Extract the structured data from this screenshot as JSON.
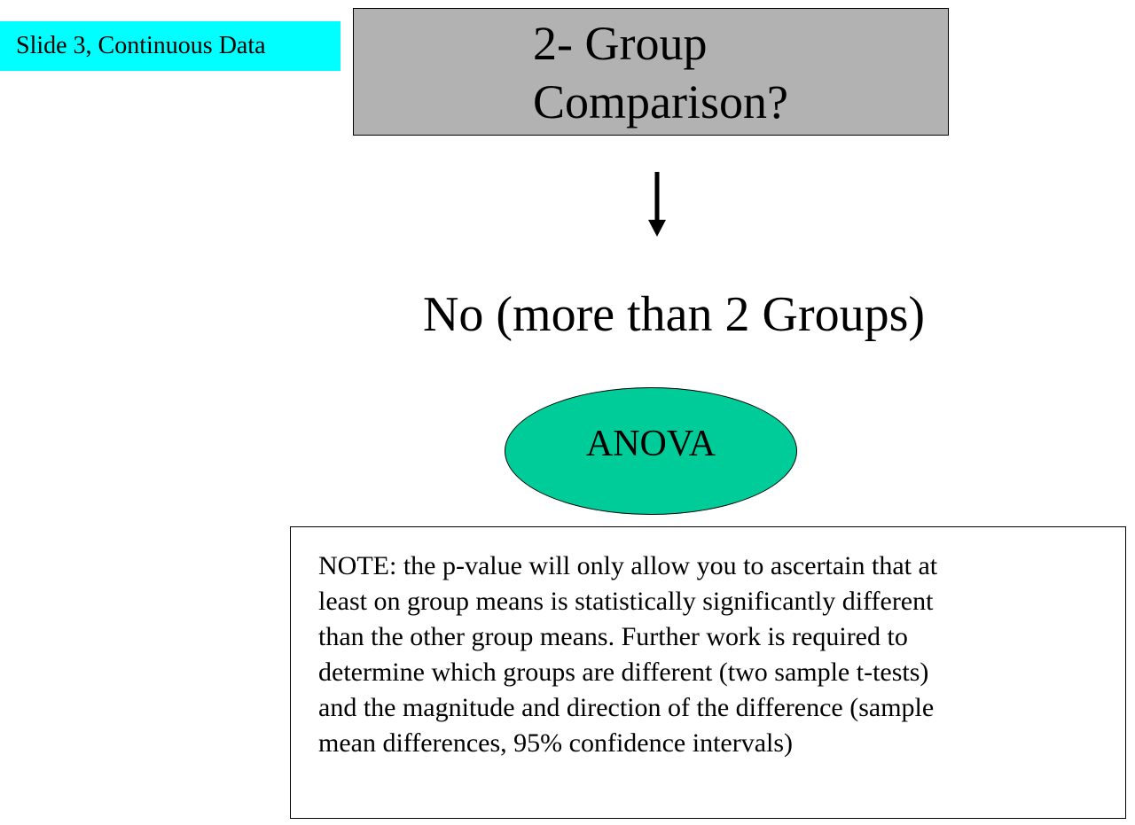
{
  "slide_label": "Slide 3, Continuous Data",
  "question": {
    "lines": [
      "2- Group",
      "Comparison?"
    ]
  },
  "answer": "No (more than 2 Groups)",
  "test": "ANOVA",
  "note": {
    "lines": [
      "NOTE: the p-value will only allow you to ascertain that at",
      "least on group means is statistically significantly different",
      "than the other group means.  Further work is required to",
      "determine which groups are different (two sample t-tests)",
      "and the magnitude and direction of the difference (sample",
      "mean differences, 95% confidence intervals)"
    ]
  },
  "colors": {
    "slide_label_bg": "#00ffff",
    "question_box_bg": "#b2b2b2",
    "oval_bg": "#00cc99"
  }
}
